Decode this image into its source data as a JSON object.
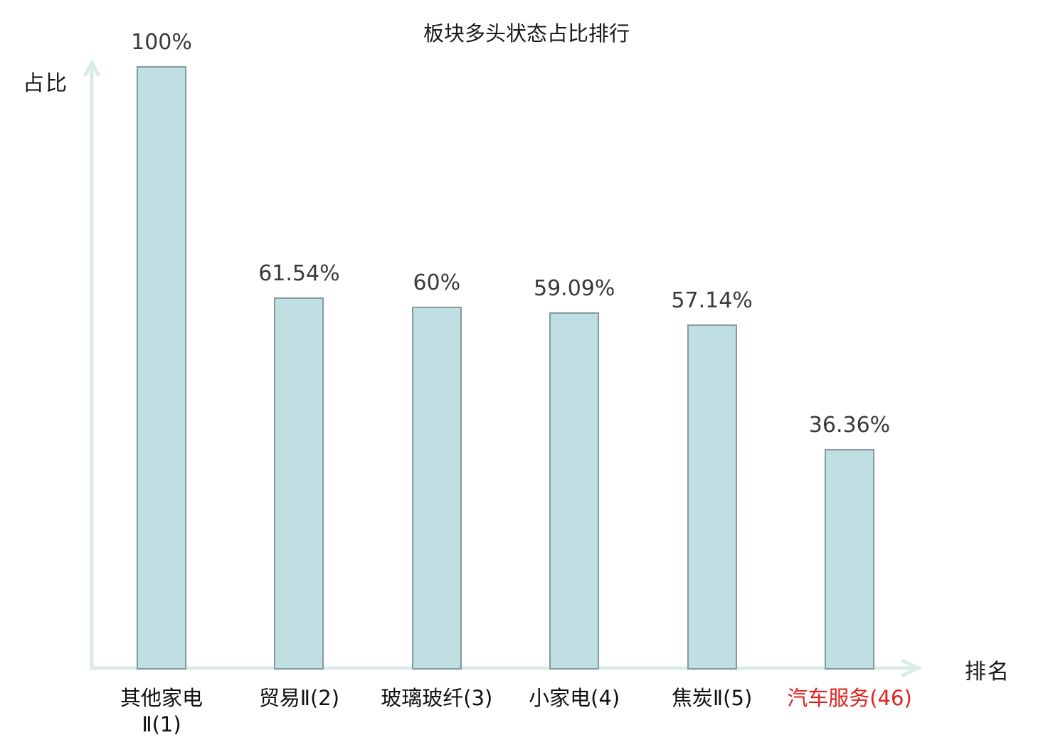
{
  "chart_data": {
    "type": "bar",
    "title": "板块多头状态占比排行",
    "xlabel": "排名",
    "ylabel": "占比",
    "categories": [
      "其他家电\nⅡ(1)",
      "贸易Ⅱ(2)",
      "玻璃玻纤(3)",
      "小家电(4)",
      "焦炭Ⅱ(5)",
      "汽车服务(46)"
    ],
    "values": [
      100,
      61.54,
      60,
      59.09,
      57.14,
      36.36
    ],
    "value_labels": [
      "100%",
      "61.54%",
      "60%",
      "59.09%",
      "57.14%",
      "36.36%"
    ],
    "ylim": [
      0,
      100
    ],
    "grid": false,
    "legend": "none",
    "highlight_index": 5,
    "colors": {
      "bar_fill": "#bfdfe2",
      "bar_border": "#8599a0",
      "axis": "#d9ece8",
      "value_label": "#3a3a3a",
      "category_label": "#111111",
      "highlight_label": "#e22020"
    }
  }
}
